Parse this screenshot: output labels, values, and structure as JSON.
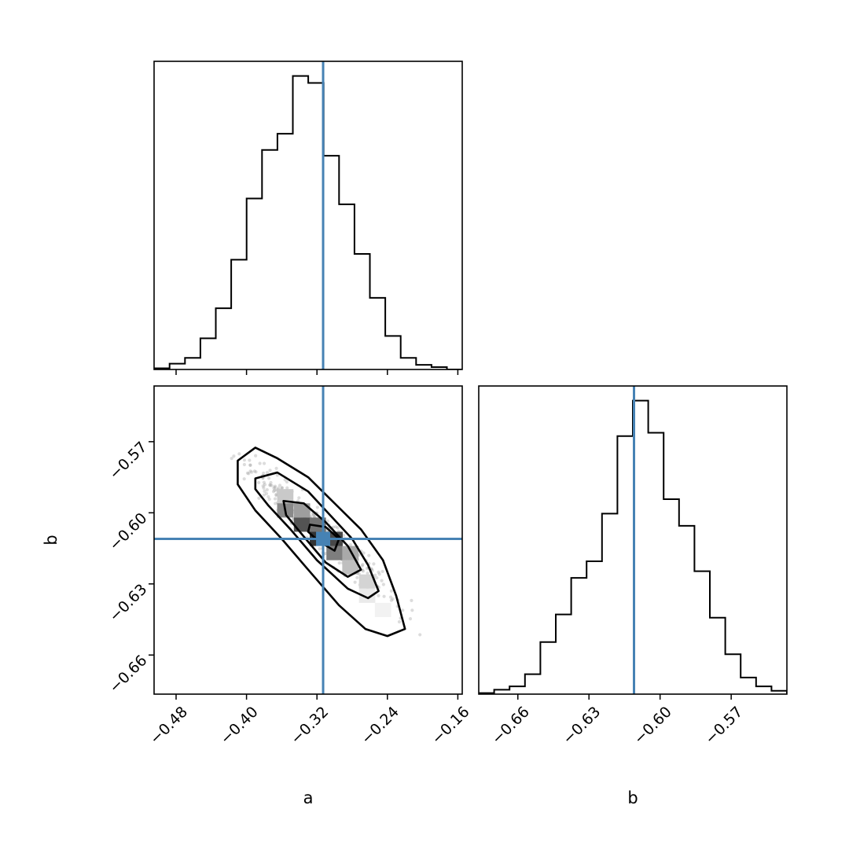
{
  "colors": {
    "truth": "#4682b4",
    "hist": "#000000",
    "axes": "#000000"
  },
  "chart_data": [
    {
      "type": "histogram",
      "panel": "a-marginal",
      "parameter": "a",
      "xlim": [
        -0.505,
        -0.155
      ],
      "bin_edges": [
        -0.5049,
        -0.4874,
        -0.4699,
        -0.4524,
        -0.4349,
        -0.4174,
        -0.3999,
        -0.3824,
        -0.3649,
        -0.3474,
        -0.3299,
        -0.3124,
        -0.2949,
        -0.2774,
        -0.2599,
        -0.2424,
        -0.2249,
        -0.2074,
        -0.1899,
        -0.1724,
        -0.1549
      ],
      "counts": [
        1,
        5,
        10,
        27,
        53,
        95,
        148,
        190,
        204,
        254,
        248,
        185,
        143,
        100,
        62,
        29,
        10,
        4,
        2,
        0
      ],
      "truth": -0.313,
      "x_ticks": [
        -0.48,
        -0.4,
        -0.32,
        -0.24,
        -0.16
      ],
      "show_tick_labels": false
    },
    {
      "type": "contour+scatter",
      "panel": "a-b-joint",
      "xlim": [
        -0.505,
        -0.155
      ],
      "ylim": [
        -0.6765,
        -0.5465
      ],
      "xlabel": "a",
      "ylabel": "b",
      "truth": {
        "a": -0.313,
        "b": -0.611
      },
      "x_ticks": [
        -0.48,
        -0.4,
        -0.32,
        -0.24,
        -0.16
      ],
      "x_tick_labels": [
        "−0.48",
        "−0.40",
        "−0.32",
        "−0.24",
        "−0.16"
      ],
      "y_ticks": [
        -0.57,
        -0.6,
        -0.63,
        -0.66
      ],
      "y_tick_labels": [
        "−0.57",
        "−0.60",
        "−0.63",
        "−0.66"
      ],
      "density_cells": [
        {
          "a": -0.356,
          "b": -0.593,
          "level": 0.25
        },
        {
          "a": -0.337,
          "b": -0.599,
          "level": 0.45
        },
        {
          "a": -0.356,
          "b": -0.599,
          "level": 0.55
        },
        {
          "a": -0.337,
          "b": -0.605,
          "level": 0.8
        },
        {
          "a": -0.319,
          "b": -0.605,
          "level": 0.65
        },
        {
          "a": -0.319,
          "b": -0.611,
          "level": 0.95
        },
        {
          "a": -0.3,
          "b": -0.611,
          "level": 0.85
        },
        {
          "a": -0.3,
          "b": -0.617,
          "level": 0.6
        },
        {
          "a": -0.282,
          "b": -0.617,
          "level": 0.4
        },
        {
          "a": -0.282,
          "b": -0.623,
          "level": 0.3
        },
        {
          "a": -0.263,
          "b": -0.629,
          "level": 0.2
        },
        {
          "a": -0.263,
          "b": -0.635,
          "level": 0.1
        },
        {
          "a": -0.245,
          "b": -0.641,
          "level": 0.06
        }
      ],
      "contours": [
        [
          [
            -0.41,
            -0.578
          ],
          [
            -0.39,
            -0.5725
          ],
          [
            -0.365,
            -0.577
          ],
          [
            -0.33,
            -0.585
          ],
          [
            -0.3,
            -0.596
          ],
          [
            -0.27,
            -0.607
          ],
          [
            -0.245,
            -0.62
          ],
          [
            -0.23,
            -0.635
          ],
          [
            -0.22,
            -0.649
          ],
          [
            -0.24,
            -0.652
          ],
          [
            -0.265,
            -0.649
          ],
          [
            -0.295,
            -0.639
          ],
          [
            -0.33,
            -0.624
          ],
          [
            -0.36,
            -0.611
          ],
          [
            -0.39,
            -0.599
          ],
          [
            -0.41,
            -0.588
          ],
          [
            -0.41,
            -0.578
          ]
        ],
        [
          [
            -0.39,
            -0.5855
          ],
          [
            -0.365,
            -0.583
          ],
          [
            -0.33,
            -0.591
          ],
          [
            -0.305,
            -0.601
          ],
          [
            -0.28,
            -0.611
          ],
          [
            -0.262,
            -0.622
          ],
          [
            -0.25,
            -0.633
          ],
          [
            -0.262,
            -0.636
          ],
          [
            -0.285,
            -0.632
          ],
          [
            -0.32,
            -0.62
          ],
          [
            -0.35,
            -0.607
          ],
          [
            -0.375,
            -0.597
          ],
          [
            -0.39,
            -0.59
          ],
          [
            -0.39,
            -0.5855
          ]
        ],
        [
          [
            -0.358,
            -0.595
          ],
          [
            -0.335,
            -0.596
          ],
          [
            -0.31,
            -0.604
          ],
          [
            -0.285,
            -0.614
          ],
          [
            -0.27,
            -0.624
          ],
          [
            -0.285,
            -0.627
          ],
          [
            -0.31,
            -0.621
          ],
          [
            -0.335,
            -0.61
          ],
          [
            -0.355,
            -0.601
          ],
          [
            -0.358,
            -0.595
          ]
        ],
        [
          [
            -0.328,
            -0.605
          ],
          [
            -0.31,
            -0.606
          ],
          [
            -0.295,
            -0.611
          ],
          [
            -0.3,
            -0.616
          ],
          [
            -0.318,
            -0.612
          ],
          [
            -0.33,
            -0.608
          ],
          [
            -0.328,
            -0.605
          ]
        ]
      ],
      "scatter_seed": 7,
      "scatter_count": 420
    },
    {
      "type": "histogram",
      "panel": "b-marginal",
      "parameter": "b",
      "xlabel": "b",
      "xlim": [
        -0.6765,
        -0.5465
      ],
      "bin_edges": [
        -0.6765,
        -0.67,
        -0.6635,
        -0.657,
        -0.6505,
        -0.644,
        -0.6375,
        -0.631,
        -0.6245,
        -0.618,
        -0.6115,
        -0.605,
        -0.5985,
        -0.592,
        -0.5855,
        -0.579,
        -0.5725,
        -0.566,
        -0.5595,
        -0.553,
        -0.5465
      ],
      "counts": [
        1,
        4,
        7,
        18,
        47,
        72,
        105,
        120,
        163,
        233,
        265,
        236,
        176,
        152,
        111,
        69,
        36,
        15,
        7,
        3
      ],
      "truth": -0.611,
      "x_ticks": [
        -0.66,
        -0.63,
        -0.6,
        -0.57
      ],
      "x_tick_labels": [
        "−0.66",
        "−0.63",
        "−0.60",
        "−0.57"
      ]
    }
  ]
}
